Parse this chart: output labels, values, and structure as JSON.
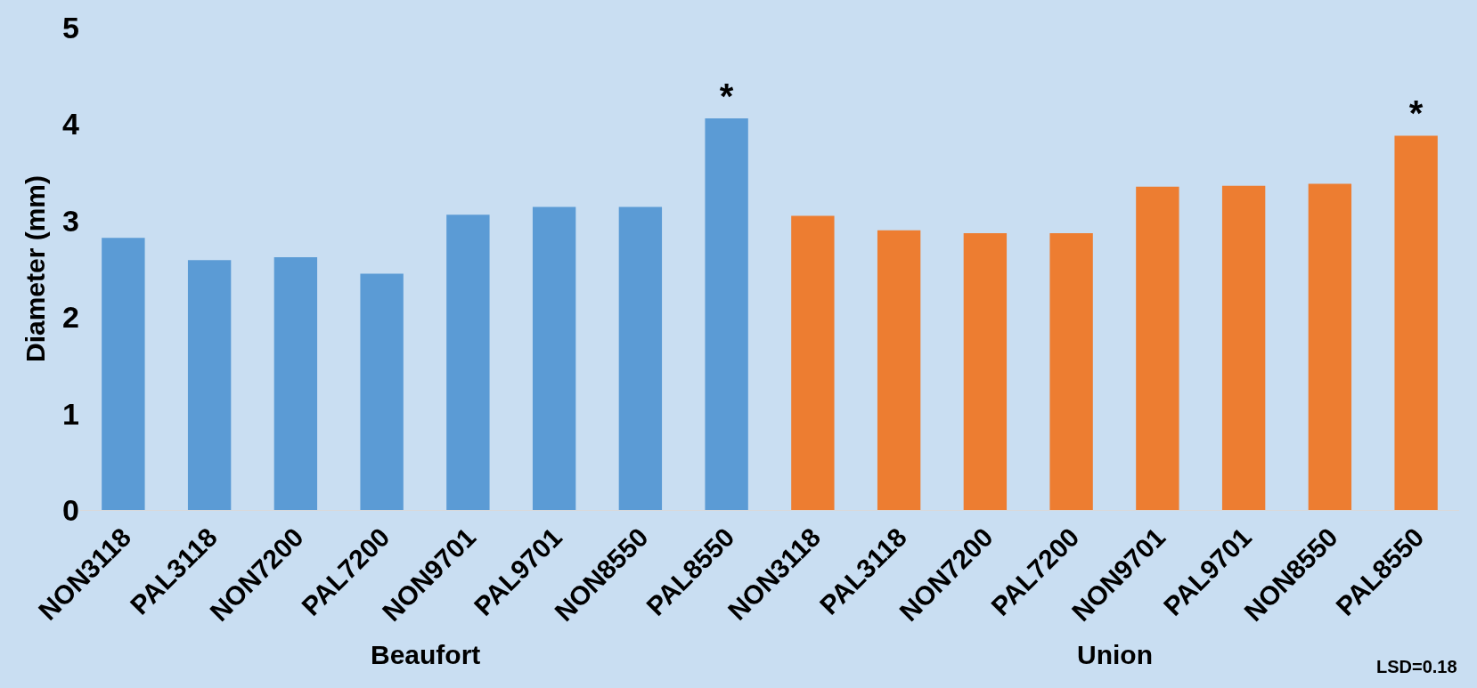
{
  "chart_data": {
    "type": "bar",
    "ylabel": "Diameter (mm)",
    "categories": [
      "NON3118",
      "PAL3118",
      "NON7200",
      "PAL7200",
      "NON9701",
      "PAL9701",
      "NON8550",
      "PAL8550",
      "NON3118",
      "PAL3118",
      "NON7200",
      "PAL7200",
      "NON9701",
      "PAL9701",
      "NON8550",
      "PAL8550"
    ],
    "values": [
      2.82,
      2.59,
      2.62,
      2.45,
      3.06,
      3.14,
      3.14,
      4.06,
      3.05,
      2.9,
      2.87,
      2.87,
      3.35,
      3.36,
      3.38,
      3.88
    ],
    "colors": [
      "#5b9bd5",
      "#5b9bd5",
      "#5b9bd5",
      "#5b9bd5",
      "#5b9bd5",
      "#5b9bd5",
      "#5b9bd5",
      "#5b9bd5",
      "#ed7d31",
      "#ed7d31",
      "#ed7d31",
      "#ed7d31",
      "#ed7d31",
      "#ed7d31",
      "#ed7d31",
      "#ed7d31"
    ],
    "value_labels": [
      null,
      null,
      null,
      null,
      null,
      null,
      null,
      "*",
      null,
      null,
      null,
      null,
      null,
      null,
      null,
      "*"
    ],
    "ylim": [
      0,
      5
    ],
    "yticks": [
      0,
      1,
      2,
      3,
      4,
      5
    ],
    "annotations": [
      "Beaufort",
      "Union",
      "LSD=0.18"
    ]
  }
}
